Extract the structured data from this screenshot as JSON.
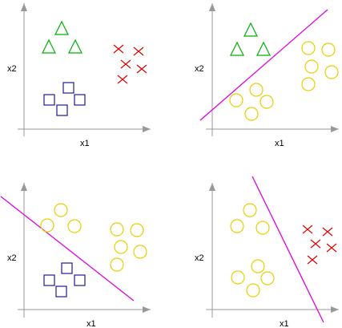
{
  "colors": {
    "axis": "#999999",
    "triangle": "#00b000",
    "cross": "#e00000",
    "square": "#1a1a9a",
    "circle": "#e6d000",
    "boundary": "#e000e0"
  },
  "panels": [
    {
      "xlabel": "x1",
      "ylabel": "x2",
      "classes": [
        "triangle",
        "cross",
        "square"
      ],
      "boundary": false
    },
    {
      "xlabel": "x1",
      "ylabel": "x2",
      "classes": [
        "triangle",
        "circle"
      ],
      "boundary": true
    },
    {
      "xlabel": "x1",
      "ylabel": "x2",
      "classes": [
        "circle",
        "square"
      ],
      "boundary": true
    },
    {
      "xlabel": "x1",
      "ylabel": "x2",
      "classes": [
        "circle",
        "cross"
      ],
      "boundary": true
    }
  ]
}
